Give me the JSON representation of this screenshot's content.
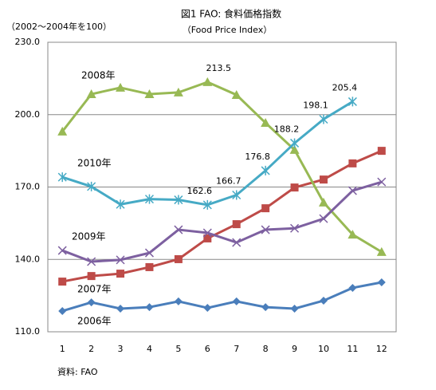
{
  "chart_data": {
    "type": "line",
    "title": "図1  FAO: 食料価格指数",
    "subtitle": "（Food Price Index）",
    "y_axis_label": "（2002～2004年を100）",
    "source": "資料: FAO",
    "categories": [
      "1",
      "2",
      "3",
      "4",
      "5",
      "6",
      "7",
      "8",
      "9",
      "10",
      "11",
      "12"
    ],
    "ylim": [
      110,
      230
    ],
    "yticks": [
      {
        "value": 110,
        "label": "110.0"
      },
      {
        "value": 140,
        "label": "140.0"
      },
      {
        "value": 170,
        "label": "170.0"
      },
      {
        "value": 200,
        "label": "200.0"
      },
      {
        "value": 230,
        "label": "230.0"
      }
    ],
    "grid": true,
    "series": [
      {
        "name": "2006年",
        "color": "#4a7ebb",
        "marker": "diamond",
        "values": [
          118.6,
          122.2,
          119.6,
          120.2,
          122.6,
          119.9,
          122.6,
          120.2,
          119.6,
          122.9,
          128.2,
          130.5
        ]
      },
      {
        "name": "2007年",
        "color": "#be4b48",
        "marker": "square",
        "values": [
          130.8,
          133.1,
          134.1,
          136.8,
          140.1,
          148.7,
          154.6,
          161.2,
          169.8,
          173.1,
          179.8,
          185.0
        ]
      },
      {
        "name": "2008年",
        "color": "#98b954",
        "marker": "triangle",
        "values": [
          193.0,
          208.5,
          211.2,
          208.5,
          209.2,
          213.5,
          208.2,
          196.6,
          185.4,
          163.6,
          150.3,
          143.1
        ],
        "value_labels": [
          null,
          null,
          null,
          null,
          null,
          "213.5",
          null,
          null,
          null,
          null,
          null,
          null
        ]
      },
      {
        "name": "2009年",
        "color": "#7d60a0",
        "marker": "x",
        "values": [
          143.7,
          139.1,
          139.8,
          142.7,
          152.3,
          151.0,
          147.0,
          152.3,
          152.9,
          156.9,
          168.5,
          172.1
        ]
      },
      {
        "name": "2010年",
        "color": "#46aac5",
        "marker": "star",
        "values": [
          174.1,
          170.2,
          162.8,
          165.0,
          164.7,
          162.6,
          166.7,
          176.8,
          188.2,
          198.1,
          205.4,
          null
        ],
        "value_labels": [
          null,
          null,
          null,
          null,
          null,
          "162.6",
          "166.7",
          "176.8",
          "188.2",
          "198.1",
          "205.4",
          null
        ]
      }
    ]
  }
}
